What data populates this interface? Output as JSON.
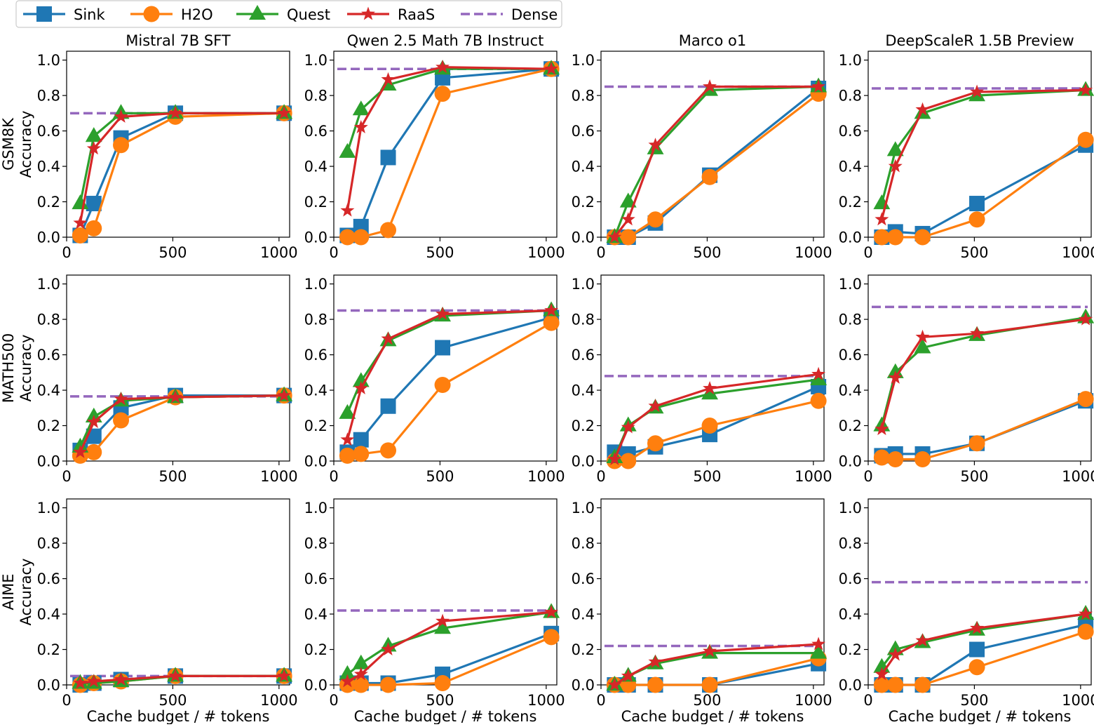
{
  "chart_data": {
    "type": "line",
    "xlabel": "Cache budget / # tokens",
    "ylabel_suffix": "Accuracy",
    "xlim": [
      0,
      1050
    ],
    "ylim": [
      0,
      1.05
    ],
    "xticks": [
      0,
      500,
      1000
    ],
    "yticks": [
      0.0,
      0.2,
      0.4,
      0.6,
      0.8,
      1.0
    ],
    "x": [
      64,
      128,
      256,
      512,
      1024
    ],
    "legend": {
      "position": "top-left",
      "entries": [
        {
          "name": "Sink",
          "color": "#1f77b4",
          "marker": "square"
        },
        {
          "name": "H2O",
          "color": "#ff7f0e",
          "marker": "circle"
        },
        {
          "name": "Quest",
          "color": "#2ca02c",
          "marker": "triangle"
        },
        {
          "name": "RaaS",
          "color": "#d62728",
          "marker": "star"
        },
        {
          "name": "Dense",
          "color": "#9467bd",
          "marker": "dashed"
        }
      ]
    },
    "columns": [
      "Mistral 7B SFT",
      "Qwen 2.5 Math 7B Instruct",
      "Marco o1",
      "DeepScaleR 1.5B Preview"
    ],
    "rows": [
      "GSM8K",
      "MATH500",
      "AIME"
    ],
    "panels": [
      {
        "row": 0,
        "col": 0,
        "dense": 0.7,
        "series": {
          "Sink": [
            0.01,
            0.19,
            0.56,
            0.7,
            0.7
          ],
          "H2O": [
            0.01,
            0.05,
            0.52,
            0.68,
            0.7
          ],
          "Quest": [
            0.19,
            0.57,
            0.7,
            0.7,
            0.7
          ],
          "RaaS": [
            0.08,
            0.5,
            0.68,
            0.7,
            0.7
          ]
        }
      },
      {
        "row": 0,
        "col": 1,
        "dense": 0.95,
        "series": {
          "Sink": [
            0.01,
            0.06,
            0.45,
            0.9,
            0.95
          ],
          "H2O": [
            0.0,
            0.0,
            0.04,
            0.81,
            0.95
          ],
          "Quest": [
            0.48,
            0.72,
            0.86,
            0.95,
            0.95
          ],
          "RaaS": [
            0.15,
            0.62,
            0.89,
            0.96,
            0.95
          ]
        }
      },
      {
        "row": 0,
        "col": 2,
        "dense": 0.85,
        "series": {
          "Sink": [
            0.0,
            0.0,
            0.08,
            0.35,
            0.84
          ],
          "H2O": [
            0.0,
            0.0,
            0.1,
            0.34,
            0.81
          ],
          "Quest": [
            0.0,
            0.2,
            0.5,
            0.83,
            0.85
          ],
          "RaaS": [
            0.0,
            0.1,
            0.52,
            0.85,
            0.85
          ]
        }
      },
      {
        "row": 0,
        "col": 3,
        "dense": 0.84,
        "series": {
          "Sink": [
            0.0,
            0.03,
            0.02,
            0.19,
            0.52
          ],
          "H2O": [
            0.0,
            0.0,
            0.0,
            0.1,
            0.55
          ],
          "Quest": [
            0.19,
            0.49,
            0.7,
            0.8,
            0.83
          ],
          "RaaS": [
            0.1,
            0.4,
            0.72,
            0.82,
            0.83
          ]
        }
      },
      {
        "row": 1,
        "col": 0,
        "dense": 0.365,
        "series": {
          "Sink": [
            0.06,
            0.14,
            0.3,
            0.37,
            0.37
          ],
          "H2O": [
            0.03,
            0.05,
            0.23,
            0.36,
            0.37
          ],
          "Quest": [
            0.08,
            0.25,
            0.34,
            0.36,
            0.37
          ],
          "RaaS": [
            0.05,
            0.22,
            0.35,
            0.36,
            0.37
          ]
        }
      },
      {
        "row": 1,
        "col": 1,
        "dense": 0.85,
        "series": {
          "Sink": [
            0.05,
            0.12,
            0.31,
            0.64,
            0.81
          ],
          "H2O": [
            0.03,
            0.04,
            0.06,
            0.43,
            0.78
          ],
          "Quest": [
            0.27,
            0.45,
            0.68,
            0.82,
            0.85
          ],
          "RaaS": [
            0.12,
            0.41,
            0.69,
            0.83,
            0.85
          ]
        }
      },
      {
        "row": 1,
        "col": 2,
        "dense": 0.48,
        "series": {
          "Sink": [
            0.05,
            0.04,
            0.08,
            0.15,
            0.42
          ],
          "H2O": [
            0.0,
            0.0,
            0.1,
            0.2,
            0.34
          ],
          "Quest": [
            0.02,
            0.2,
            0.3,
            0.38,
            0.46
          ],
          "RaaS": [
            0.01,
            0.19,
            0.31,
            0.41,
            0.49
          ]
        }
      },
      {
        "row": 1,
        "col": 3,
        "dense": 0.87,
        "series": {
          "Sink": [
            0.03,
            0.04,
            0.04,
            0.1,
            0.34
          ],
          "H2O": [
            0.02,
            0.01,
            0.01,
            0.1,
            0.35
          ],
          "Quest": [
            0.2,
            0.5,
            0.64,
            0.71,
            0.81
          ],
          "RaaS": [
            0.18,
            0.47,
            0.7,
            0.72,
            0.8
          ]
        }
      },
      {
        "row": 2,
        "col": 0,
        "dense": 0.05,
        "series": {
          "Sink": [
            0.0,
            0.01,
            0.03,
            0.05,
            0.05
          ],
          "H2O": [
            0.0,
            0.01,
            0.02,
            0.05,
            0.05
          ],
          "Quest": [
            0.01,
            0.01,
            0.02,
            0.05,
            0.05
          ],
          "RaaS": [
            0.01,
            0.02,
            0.03,
            0.05,
            0.05
          ]
        }
      },
      {
        "row": 2,
        "col": 1,
        "dense": 0.42,
        "series": {
          "Sink": [
            0.01,
            0.01,
            0.01,
            0.06,
            0.29
          ],
          "H2O": [
            0.0,
            0.0,
            0.0,
            0.01,
            0.27
          ],
          "Quest": [
            0.06,
            0.12,
            0.22,
            0.32,
            0.41
          ],
          "RaaS": [
            0.02,
            0.06,
            0.2,
            0.36,
            0.41
          ]
        }
      },
      {
        "row": 2,
        "col": 2,
        "dense": 0.22,
        "series": {
          "Sink": [
            0.0,
            0.0,
            0.0,
            0.0,
            0.12
          ],
          "H2O": [
            0.0,
            0.0,
            0.0,
            0.0,
            0.15
          ],
          "Quest": [
            0.0,
            0.05,
            0.12,
            0.18,
            0.18
          ],
          "RaaS": [
            0.0,
            0.05,
            0.13,
            0.19,
            0.23
          ]
        }
      },
      {
        "row": 2,
        "col": 3,
        "dense": 0.58,
        "series": {
          "Sink": [
            0.0,
            0.0,
            0.0,
            0.2,
            0.34
          ],
          "H2O": [
            0.0,
            0.0,
            0.0,
            0.1,
            0.3
          ],
          "Quest": [
            0.1,
            0.2,
            0.24,
            0.31,
            0.4
          ],
          "RaaS": [
            0.06,
            0.17,
            0.25,
            0.32,
            0.4
          ]
        }
      }
    ]
  }
}
